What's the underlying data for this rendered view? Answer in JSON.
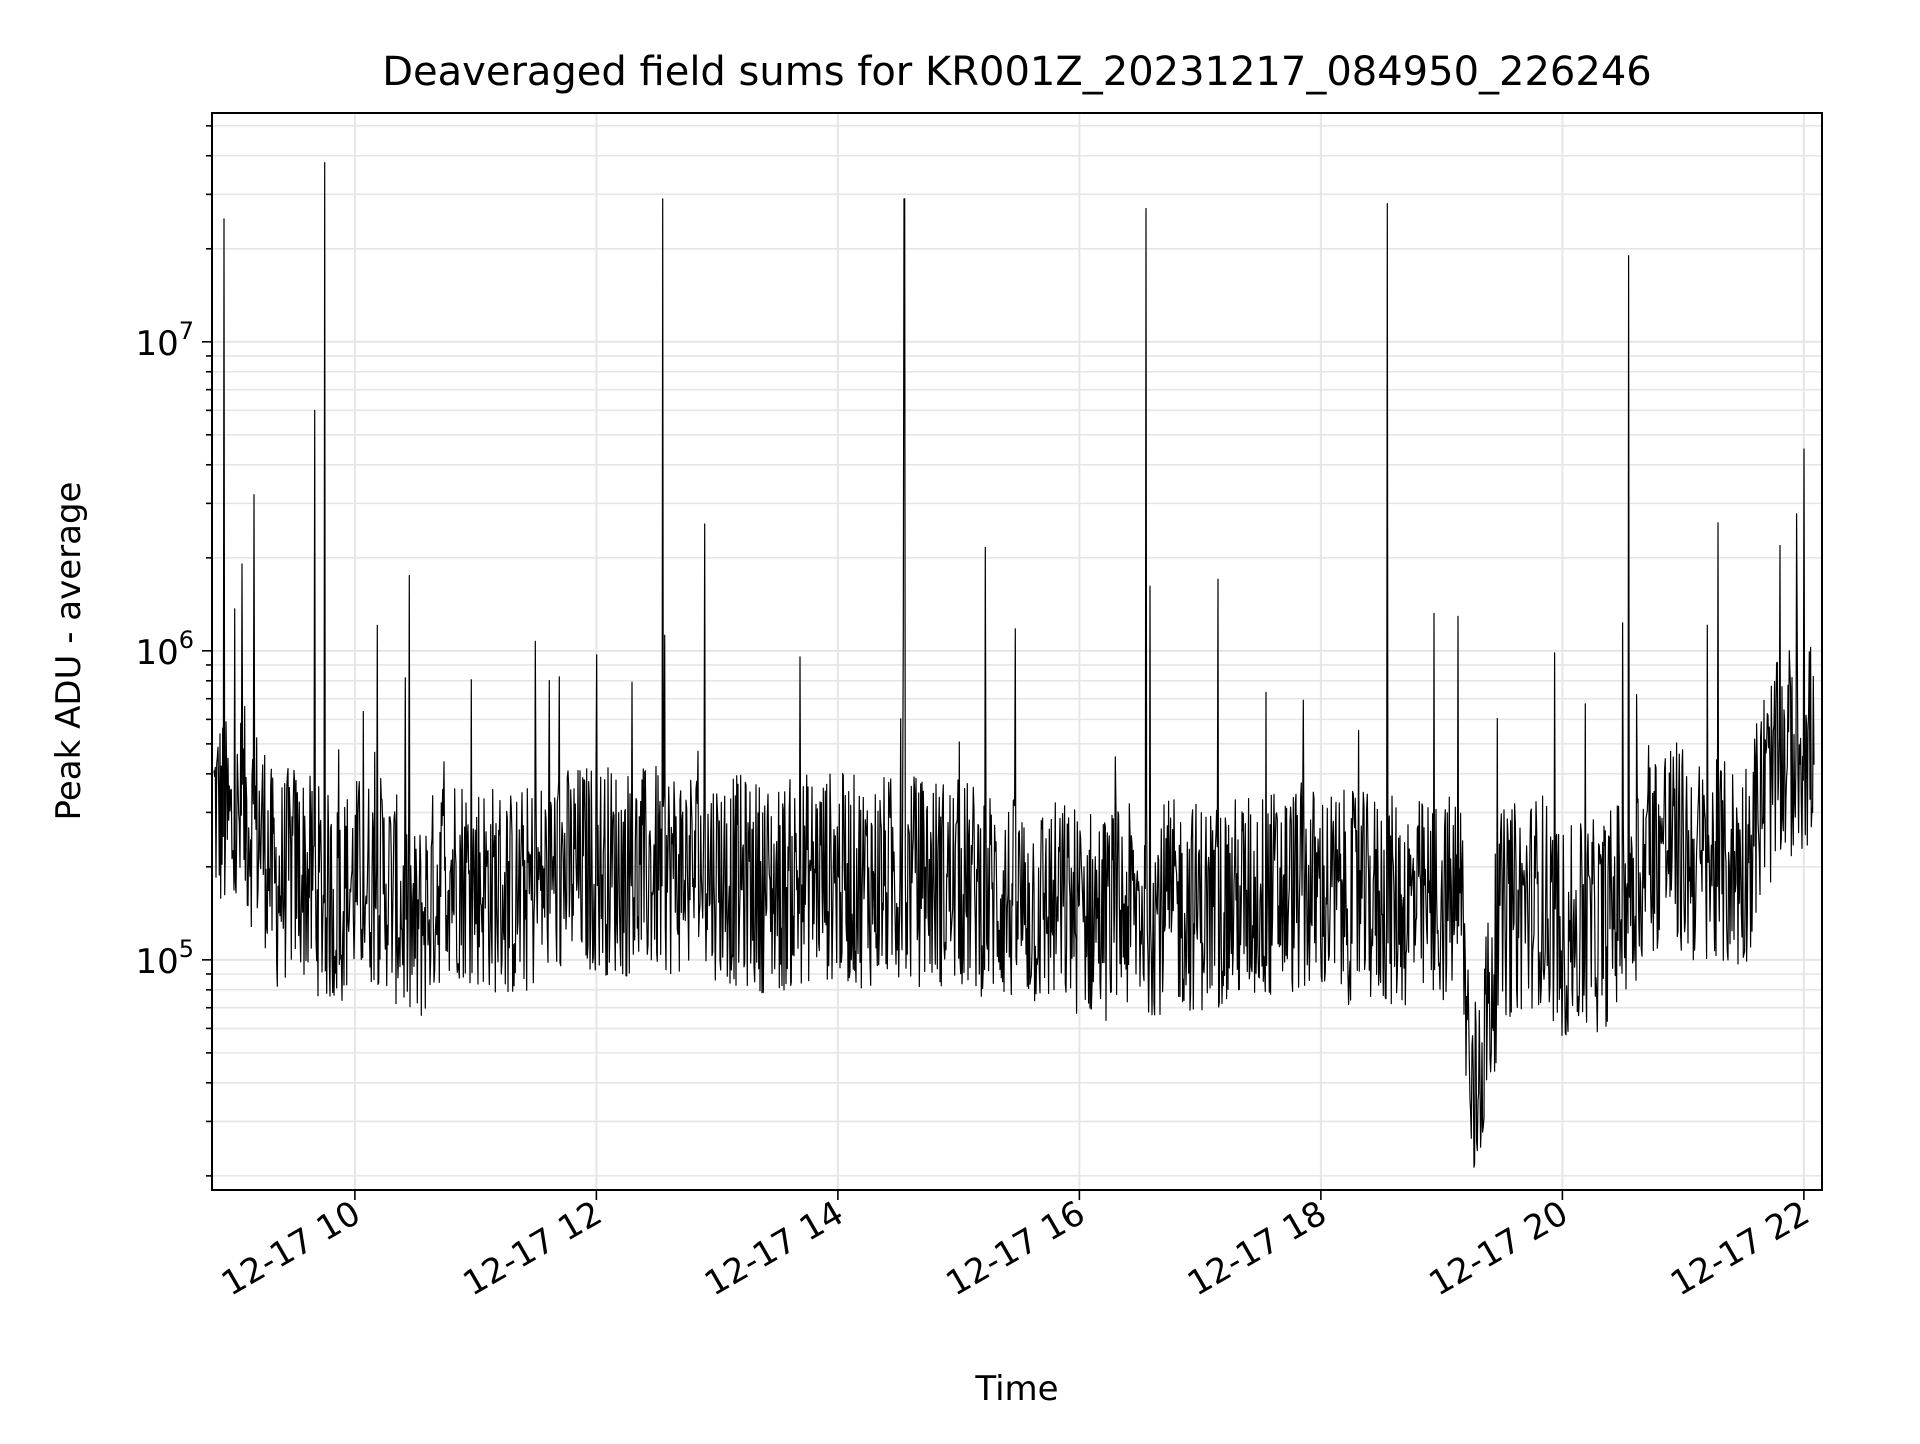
{
  "chart_data": {
    "type": "line",
    "title": "Deaveraged field sums for KR001Z_20231217_084950_226246",
    "xlabel": "Time",
    "ylabel": "Peak ADU - average",
    "xlim": [
      "2023-12-17 08:49",
      "2023-12-17 22:09"
    ],
    "ylim": [
      18000,
      55000000
    ],
    "yscale": "log",
    "grid": true,
    "legend": "none",
    "x_ticks": [
      "12-17 10",
      "12-17 12",
      "12-17 14",
      "12-17 16",
      "12-17 18",
      "12-17 20",
      "12-17 22"
    ],
    "y_ticks": [
      {
        "base": "10",
        "exp": "5",
        "value": 100000
      },
      {
        "base": "10",
        "exp": "6",
        "value": 1000000
      },
      {
        "base": "10",
        "exp": "7",
        "value": 10000000
      }
    ],
    "series": [
      {
        "color": "#000000",
        "x": [
          "2023-12-17 08:50",
          "2023-12-17 08:55",
          "2023-12-17 09:00",
          "2023-12-17 09:05",
          "2023-12-17 09:10",
          "2023-12-17 09:15",
          "2023-12-17 09:20",
          "2023-12-17 09:30",
          "2023-12-17 09:40",
          "2023-12-17 09:45",
          "2023-12-17 09:50",
          "2023-12-17 10:00",
          "2023-12-17 10:15",
          "2023-12-17 10:30",
          "2023-12-17 10:45",
          "2023-12-17 11:00",
          "2023-12-17 11:20",
          "2023-12-17 11:40",
          "2023-12-17 12:00",
          "2023-12-17 12:20",
          "2023-12-17 12:33",
          "2023-12-17 12:50",
          "2023-12-17 13:10",
          "2023-12-17 13:30",
          "2023-12-17 13:50",
          "2023-12-17 14:10",
          "2023-12-17 14:33",
          "2023-12-17 14:50",
          "2023-12-17 15:10",
          "2023-12-17 15:30",
          "2023-12-17 15:50",
          "2023-12-17 16:10",
          "2023-12-17 16:33",
          "2023-12-17 16:50",
          "2023-12-17 17:10",
          "2023-12-17 17:30",
          "2023-12-17 17:50",
          "2023-12-17 18:10",
          "2023-12-17 18:33",
          "2023-12-17 18:50",
          "2023-12-17 19:10",
          "2023-12-17 19:15",
          "2023-12-17 19:30",
          "2023-12-17 19:50",
          "2023-12-17 20:00",
          "2023-12-17 20:20",
          "2023-12-17 20:33",
          "2023-12-17 20:50",
          "2023-12-17 21:10",
          "2023-12-17 21:30",
          "2023-12-17 21:40",
          "2023-12-17 21:50",
          "2023-12-17 22:00",
          "2023-12-17 22:05"
        ],
        "y": [
          320000,
          25000000,
          250000,
          300000,
          3200000,
          250000,
          170000,
          200000,
          6000000,
          38000000,
          150000,
          180000,
          180000,
          120000,
          200000,
          180000,
          160000,
          190000,
          200000,
          190000,
          29000000,
          200000,
          180000,
          170000,
          190000,
          180000,
          29000000,
          180000,
          170000,
          150000,
          150000,
          140000,
          27000000,
          150000,
          150000,
          160000,
          170000,
          160000,
          28000000,
          150000,
          160000,
          30000,
          140000,
          160000,
          120000,
          130000,
          19000000,
          250000,
          200000,
          200000,
          350000,
          450000,
          4500000,
          500000
        ]
      }
    ]
  }
}
